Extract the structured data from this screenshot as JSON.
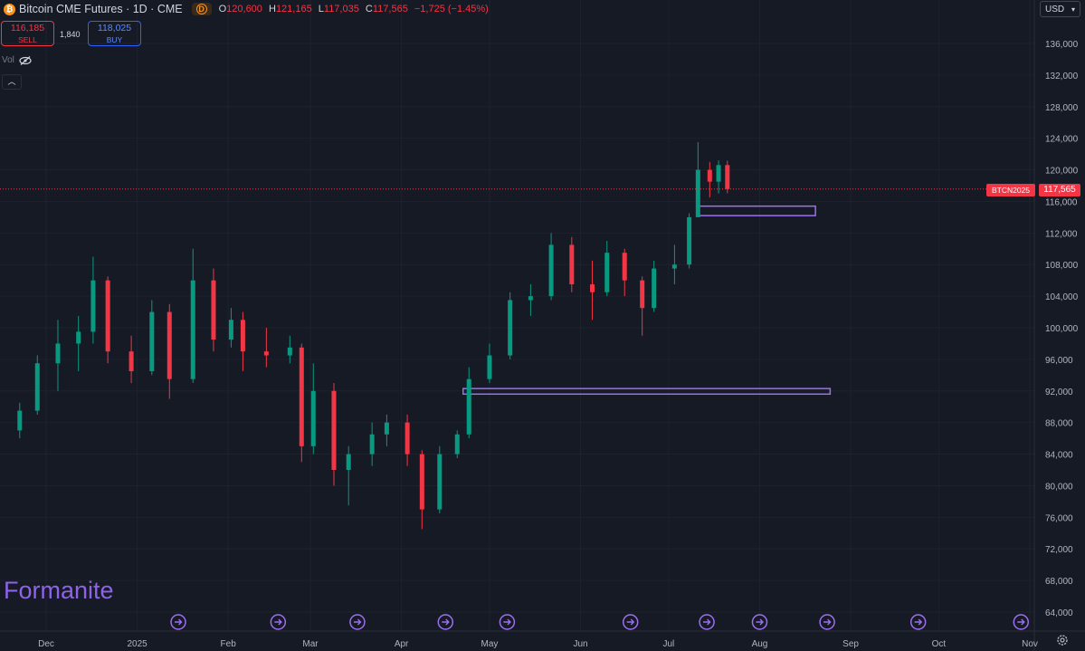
{
  "header": {
    "symbol_title": "Bitcoin CME Futures · 1D · CME",
    "badge": "D",
    "ohlc": [
      {
        "key": "O",
        "value": "120,600"
      },
      {
        "key": "H",
        "value": "121,165"
      },
      {
        "key": "L",
        "value": "117,035"
      },
      {
        "key": "C",
        "value": "117,565"
      }
    ],
    "change": "−1,725 (−1.45%)"
  },
  "trade": {
    "sell_price": "116,185",
    "sell_label": "SELL",
    "spread": "1,840",
    "buy_price": "118,025",
    "buy_label": "BUY"
  },
  "indicators": {
    "volume_label": "Vol"
  },
  "currency": "USD",
  "watermark": "Formanite",
  "last_price": {
    "symbol": "BTCN2025",
    "value": "117,565"
  },
  "colors": {
    "up": "#089981",
    "down": "#f23645",
    "zone": "#9c6ff0",
    "background": "#161a25"
  },
  "icons": [
    "bitcoin-icon",
    "eye-off-icon",
    "chevron-up-icon",
    "chevron-down-icon",
    "gear-icon",
    "event-arrow-icon"
  ],
  "chart_data": {
    "type": "candlestick",
    "y_axis": {
      "min": 64000,
      "max": 136000,
      "ticks": [
        "136,000",
        "132,000",
        "128,000",
        "124,000",
        "120,000",
        "116,000",
        "112,000",
        "108,000",
        "104,000",
        "100,000",
        "96,000",
        "92,000",
        "88,000",
        "84,000",
        "80,000",
        "76,000",
        "72,000",
        "68,000",
        "64,000"
      ]
    },
    "x_axis": {
      "labels": [
        "Dec",
        "2025",
        "Feb",
        "Mar",
        "Apr",
        "May",
        "Jun",
        "Jul",
        "Aug",
        "Sep",
        "Oct",
        "Nov"
      ]
    },
    "zones": [
      {
        "from_date": "2025-04-22",
        "to_date": "2025-08-25",
        "low": 91600,
        "high": 92300
      },
      {
        "from_date": "2025-07-11",
        "to_date": "2025-08-20",
        "low": 114200,
        "high": 115400
      }
    ],
    "candles": [
      {
        "date": "2024-11-22",
        "o": 87000,
        "h": 90500,
        "l": 86000,
        "c": 89500
      },
      {
        "date": "2024-11-28",
        "o": 89500,
        "h": 96500,
        "l": 89000,
        "c": 95500
      },
      {
        "date": "2024-12-05",
        "o": 95500,
        "h": 101000,
        "l": 92000,
        "c": 98000
      },
      {
        "date": "2024-12-12",
        "o": 98000,
        "h": 101500,
        "l": 94500,
        "c": 99500
      },
      {
        "date": "2024-12-17",
        "o": 99500,
        "h": 109000,
        "l": 98000,
        "c": 106000
      },
      {
        "date": "2024-12-22",
        "o": 106000,
        "h": 106500,
        "l": 95500,
        "c": 97000
      },
      {
        "date": "2024-12-30",
        "o": 97000,
        "h": 99000,
        "l": 93000,
        "c": 94500
      },
      {
        "date": "2025-01-06",
        "o": 94500,
        "h": 103500,
        "l": 94000,
        "c": 102000
      },
      {
        "date": "2025-01-12",
        "o": 102000,
        "h": 103000,
        "l": 91000,
        "c": 93500
      },
      {
        "date": "2025-01-20",
        "o": 93500,
        "h": 110000,
        "l": 93000,
        "c": 106000
      },
      {
        "date": "2025-01-27",
        "o": 106000,
        "h": 107500,
        "l": 97000,
        "c": 98500
      },
      {
        "date": "2025-02-02",
        "o": 98500,
        "h": 102500,
        "l": 97500,
        "c": 101000
      },
      {
        "date": "2025-02-06",
        "o": 101000,
        "h": 102000,
        "l": 94500,
        "c": 97000
      },
      {
        "date": "2025-02-14",
        "o": 97000,
        "h": 100000,
        "l": 95000,
        "c": 96500
      },
      {
        "date": "2025-02-22",
        "o": 96500,
        "h": 99000,
        "l": 95500,
        "c": 97500
      },
      {
        "date": "2025-02-26",
        "o": 97500,
        "h": 98000,
        "l": 83000,
        "c": 85000
      },
      {
        "date": "2025-03-02",
        "o": 85000,
        "h": 95500,
        "l": 84000,
        "c": 92000
      },
      {
        "date": "2025-03-09",
        "o": 92000,
        "h": 93000,
        "l": 80000,
        "c": 82000
      },
      {
        "date": "2025-03-14",
        "o": 82000,
        "h": 85000,
        "l": 77500,
        "c": 84000
      },
      {
        "date": "2025-03-22",
        "o": 84000,
        "h": 88000,
        "l": 82500,
        "c": 86500
      },
      {
        "date": "2025-03-27",
        "o": 86500,
        "h": 89000,
        "l": 85000,
        "c": 88000
      },
      {
        "date": "2025-04-03",
        "o": 88000,
        "h": 89000,
        "l": 82500,
        "c": 84000
      },
      {
        "date": "2025-04-08",
        "o": 84000,
        "h": 84500,
        "l": 74500,
        "c": 77000
      },
      {
        "date": "2025-04-14",
        "o": 77000,
        "h": 85000,
        "l": 76500,
        "c": 84000
      },
      {
        "date": "2025-04-20",
        "o": 84000,
        "h": 87000,
        "l": 83500,
        "c": 86500
      },
      {
        "date": "2025-04-24",
        "o": 86500,
        "h": 95000,
        "l": 86000,
        "c": 93500
      },
      {
        "date": "2025-05-01",
        "o": 93500,
        "h": 98000,
        "l": 93000,
        "c": 96500
      },
      {
        "date": "2025-05-08",
        "o": 96500,
        "h": 104500,
        "l": 96000,
        "c": 103500
      },
      {
        "date": "2025-05-15",
        "o": 103500,
        "h": 105500,
        "l": 101500,
        "c": 104000
      },
      {
        "date": "2025-05-22",
        "o": 104000,
        "h": 112000,
        "l": 103500,
        "c": 110500
      },
      {
        "date": "2025-05-29",
        "o": 110500,
        "h": 111500,
        "l": 104500,
        "c": 105500
      },
      {
        "date": "2025-06-05",
        "o": 105500,
        "h": 108500,
        "l": 101000,
        "c": 104500
      },
      {
        "date": "2025-06-10",
        "o": 104500,
        "h": 111000,
        "l": 104000,
        "c": 109500
      },
      {
        "date": "2025-06-16",
        "o": 109500,
        "h": 110000,
        "l": 104000,
        "c": 106000
      },
      {
        "date": "2025-06-22",
        "o": 106000,
        "h": 106500,
        "l": 99000,
        "c": 102500
      },
      {
        "date": "2025-06-26",
        "o": 102500,
        "h": 108500,
        "l": 102000,
        "c": 107500
      },
      {
        "date": "2025-07-03",
        "o": 107500,
        "h": 110500,
        "l": 105500,
        "c": 108000
      },
      {
        "date": "2025-07-08",
        "o": 108000,
        "h": 114500,
        "l": 107500,
        "c": 114000
      },
      {
        "date": "2025-07-11",
        "o": 114000,
        "h": 123500,
        "l": 114000,
        "c": 120000
      },
      {
        "date": "2025-07-15",
        "o": 120000,
        "h": 121000,
        "l": 116500,
        "c": 118500
      },
      {
        "date": "2025-07-18",
        "o": 118500,
        "h": 121200,
        "l": 117000,
        "c": 120600
      },
      {
        "date": "2025-07-21",
        "o": 120600,
        "h": 121165,
        "l": 117035,
        "c": 117565
      }
    ]
  }
}
